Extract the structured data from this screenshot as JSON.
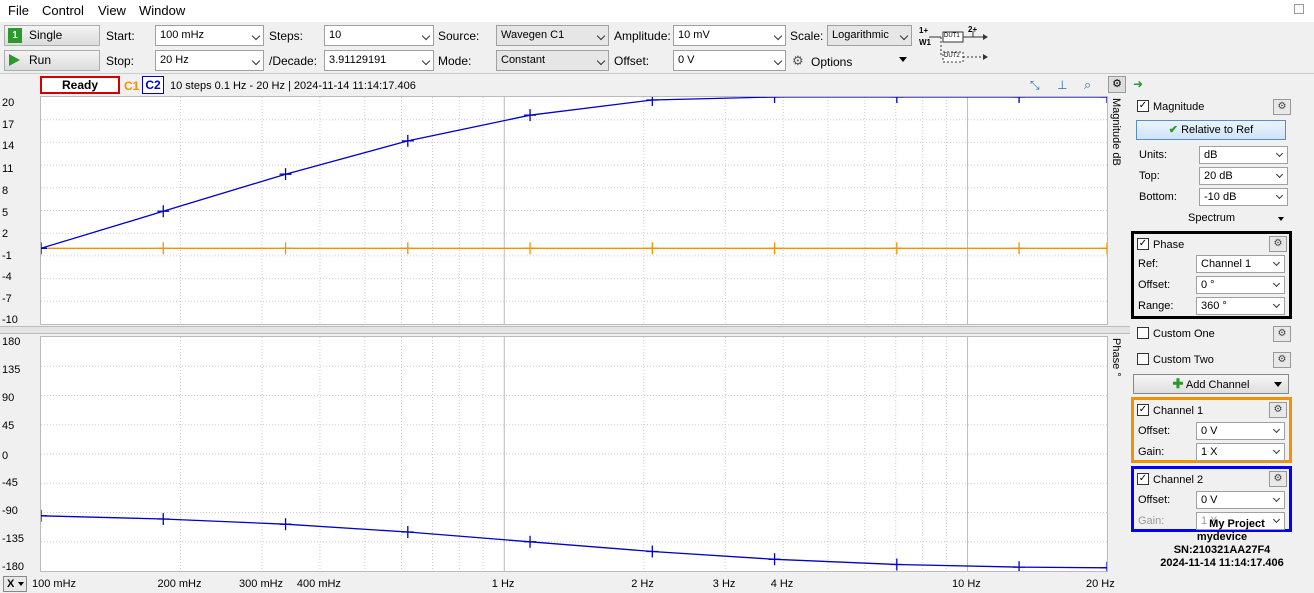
{
  "menu": [
    "File",
    "Control",
    "View",
    "Window"
  ],
  "toolbar": {
    "single_label": "Single",
    "run_label": "Run",
    "start_label": "Start:",
    "start_value": "100 mHz",
    "stop_label": "Stop:",
    "stop_value": "20 Hz",
    "steps_label": "Steps:",
    "steps_value": "10",
    "decade_label": "/Decade:",
    "decade_value": "3.91129191",
    "source_label": "Source:",
    "source_value": "Wavegen C1",
    "mode_label": "Mode:",
    "mode_value": "Constant",
    "amplitude_label": "Amplitude:",
    "amplitude_value": "10 mV",
    "offset_label": "Offset:",
    "offset_value": "0 V",
    "scale_label": "Scale:",
    "scale_value": "Logarithmic",
    "options_label": "Options",
    "diagram": {
      "in_label": "1+",
      "w_label": "W1",
      "out_label": "2+",
      "dut1": "DUT1",
      "dut2": "DUT2"
    }
  },
  "status": {
    "state": "Ready",
    "c1": "C1",
    "c2": "C2",
    "summary": "10 steps  0.1 Hz - 20 Hz | 2024-11-14 11:14:17.406"
  },
  "colors": {
    "c1": "#f39200",
    "c2": "#0000c8",
    "ready_border": "#d40000",
    "phase_box": "#000000",
    "ch1_box": "#f39200",
    "ch2_box": "#0000ff"
  },
  "plots": {
    "mag_title": "Magnitude  dB",
    "phase_title": "Phase  °",
    "mag_yticks": [
      "20",
      "17",
      "14",
      "11",
      "8",
      "5",
      "2",
      "-1",
      "-4",
      "-7",
      "-10"
    ],
    "phase_yticks": [
      "180",
      "135",
      "90",
      "45",
      "0",
      "-45",
      "-90",
      "-135",
      "-180"
    ],
    "x_axis_button": "X",
    "xticks": [
      {
        "label": "100 mHz",
        "f": 0.1
      },
      {
        "label": "200 mHz",
        "f": 0.2
      },
      {
        "label": "300 mHz",
        "f": 0.3
      },
      {
        "label": "400 mHz",
        "f": 0.4
      },
      {
        "label": "1 Hz",
        "f": 1
      },
      {
        "label": "2 Hz",
        "f": 2
      },
      {
        "label": "3 Hz",
        "f": 3
      },
      {
        "label": "4 Hz",
        "f": 4
      },
      {
        "label": "10 Hz",
        "f": 10
      },
      {
        "label": "20 Hz",
        "f": 20
      }
    ]
  },
  "chart_data": [
    {
      "type": "line",
      "ylabel": "Magnitude  dB",
      "ylim": [
        -10,
        20
      ],
      "xscale": "log",
      "xlim": [
        0.1,
        20
      ],
      "grid": true,
      "series": [
        {
          "name": "C1",
          "x": [
            0.1,
            0.1836,
            0.3372,
            0.6191,
            1.1367,
            2.0871,
            3.8322,
            7.0362,
            12.919,
            20
          ],
          "y": [
            0,
            0,
            0,
            0,
            0,
            0,
            0,
            0,
            0,
            0
          ]
        },
        {
          "name": "C2",
          "x": [
            0.1,
            0.1836,
            0.3372,
            0.6191,
            1.1367,
            2.0871,
            3.8322,
            7.0362,
            12.919,
            20
          ],
          "y": [
            0,
            4.9,
            9.8,
            14.2,
            17.6,
            19.6,
            20.6,
            21.0,
            21.2,
            21.3
          ]
        }
      ]
    },
    {
      "type": "line",
      "ylabel": "Phase  °",
      "ylim": [
        -180,
        180
      ],
      "xscale": "log",
      "xlim": [
        0.1,
        20
      ],
      "grid": true,
      "series": [
        {
          "name": "C2",
          "x": [
            0.1,
            0.1836,
            0.3372,
            0.6191,
            1.1367,
            2.0871,
            3.8322,
            7.0362,
            12.919,
            20
          ],
          "y": [
            -95,
            -100,
            -108,
            -120,
            -135,
            -150,
            -162,
            -170,
            -174,
            -175
          ]
        }
      ]
    }
  ],
  "panel": {
    "magnitude": {
      "label": "Magnitude",
      "checked": "✓",
      "relative_btn": "Relative to Ref",
      "units_label": "Units:",
      "units_value": "dB",
      "top_label": "Top:",
      "top_value": "20 dB",
      "bottom_label": "Bottom:",
      "bottom_value": "-10 dB",
      "spectrum_label": "Spectrum"
    },
    "phase": {
      "label": "Phase",
      "checked": "✓",
      "ref_label": "Ref:",
      "ref_value": "Channel 1",
      "offset_label": "Offset:",
      "offset_value": "0 °",
      "range_label": "Range:",
      "range_value": "360 °"
    },
    "custom_one": "Custom One",
    "custom_two": "Custom Two",
    "add_channel": "Add Channel",
    "channel1": {
      "label": "Channel 1",
      "checked": "✓",
      "offset_label": "Offset:",
      "offset_value": "0 V",
      "gain_label": "Gain:",
      "gain_value": "1 X"
    },
    "channel2": {
      "label": "Channel 2",
      "checked": "✓",
      "offset_label": "Offset:",
      "offset_value": "0 V",
      "gain_label": "Gain:",
      "gain_value": "1 X"
    }
  },
  "device_info": {
    "project": "My Project",
    "device": "mydevice",
    "serial": "SN:210321AA27F4",
    "timestamp": "2024-11-14 11:14:17.406"
  }
}
